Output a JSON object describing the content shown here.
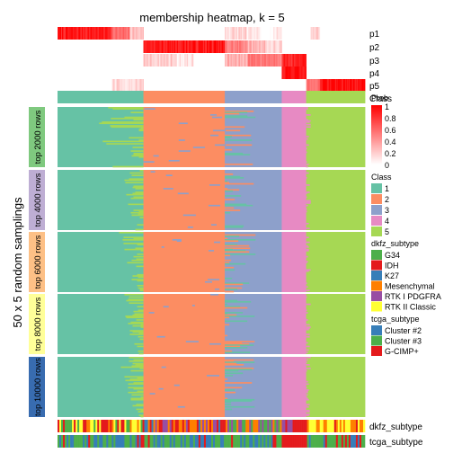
{
  "chart_data": {
    "type": "heatmap",
    "title": "membership heatmap, k = 5",
    "y_title": "50 x 5 random samplings",
    "membership_rows": [
      "p1",
      "p2",
      "p3",
      "p4",
      "p5"
    ],
    "membership_segments": [
      {
        "row": 0,
        "start": 0,
        "end": 60,
        "value": 0.9
      },
      {
        "row": 0,
        "start": 60,
        "end": 80,
        "value": 0.55
      },
      {
        "row": 0,
        "start": 80,
        "end": 95,
        "value": 0.25
      },
      {
        "row": 0,
        "start": 185,
        "end": 210,
        "value": 0.15
      },
      {
        "row": 0,
        "start": 210,
        "end": 225,
        "value": 0.05
      },
      {
        "row": 0,
        "start": 235,
        "end": 248,
        "value": 0.1
      },
      {
        "row": 0,
        "start": 280,
        "end": 290,
        "value": 0.2
      },
      {
        "row": 1,
        "start": 95,
        "end": 185,
        "value": 0.9
      },
      {
        "row": 1,
        "start": 185,
        "end": 210,
        "value": 0.5
      },
      {
        "row": 1,
        "start": 210,
        "end": 230,
        "value": 0.3
      },
      {
        "row": 1,
        "start": 230,
        "end": 248,
        "value": 0.15
      },
      {
        "row": 2,
        "start": 95,
        "end": 130,
        "value": 0.2
      },
      {
        "row": 2,
        "start": 130,
        "end": 150,
        "value": 0.1
      },
      {
        "row": 2,
        "start": 185,
        "end": 210,
        "value": 0.3
      },
      {
        "row": 2,
        "start": 210,
        "end": 248,
        "value": 0.55
      },
      {
        "row": 2,
        "start": 248,
        "end": 275,
        "value": 0.85
      },
      {
        "row": 3,
        "start": 248,
        "end": 263,
        "value": 0.95
      },
      {
        "row": 3,
        "start": 263,
        "end": 275,
        "value": 0.9
      },
      {
        "row": 4,
        "start": 60,
        "end": 95,
        "value": 0.15
      },
      {
        "row": 4,
        "start": 275,
        "end": 290,
        "value": 0.55
      },
      {
        "row": 4,
        "start": 290,
        "end": 340,
        "value": 0.95
      }
    ],
    "column_count": 340,
    "class_blocks": [
      {
        "class": "1",
        "start": 0,
        "end": 95
      },
      {
        "class": "2",
        "start": 95,
        "end": 185
      },
      {
        "class": "3",
        "start": 185,
        "end": 248
      },
      {
        "class": "4",
        "start": 248,
        "end": 275
      },
      {
        "class": "5",
        "start": 275,
        "end": 340
      }
    ],
    "row_groups": [
      "top 2000 rows",
      "top 4000 rows",
      "top 6000 rows",
      "top 8000 rows",
      "top 10000 rows"
    ],
    "row_group_colors": [
      "#7fc97f",
      "#beaed4",
      "#fdc086",
      "#ffff99",
      "#386cb0"
    ],
    "class_colors": {
      "1": "#66c2a5",
      "2": "#fc8d62",
      "3": "#8da0cb",
      "4": "#e78ac3",
      "5": "#a6d854"
    },
    "annotation_tracks": [
      "dkfz_subtype",
      "tcga_subtype"
    ],
    "legends": {
      "prob": {
        "title": "Prob",
        "ticks": [
          "1",
          "0.8",
          "0.6",
          "0.4",
          "0.2",
          "0"
        ]
      },
      "class": {
        "title": "Class",
        "entries": [
          "1",
          "2",
          "3",
          "4",
          "5"
        ]
      },
      "dkfz_subtype": {
        "title": "dkfz_subtype",
        "entries": [
          {
            "label": "G34",
            "color": "#4daf4a"
          },
          {
            "label": "IDH",
            "color": "#e41a1c"
          },
          {
            "label": "K27",
            "color": "#377eb8"
          },
          {
            "label": "Mesenchymal",
            "color": "#ff7f00"
          },
          {
            "label": "RTK I PDGFRA",
            "color": "#984ea3"
          },
          {
            "label": "RTK II Classic",
            "color": "#ffff33"
          }
        ]
      },
      "tcga_subtype": {
        "title": "tcga_subtype",
        "entries": [
          {
            "label": "Cluster #2",
            "color": "#377eb8"
          },
          {
            "label": "Cluster #3",
            "color": "#4daf4a"
          },
          {
            "label": "G-CIMP+",
            "color": "#e41a1c"
          }
        ]
      }
    }
  }
}
